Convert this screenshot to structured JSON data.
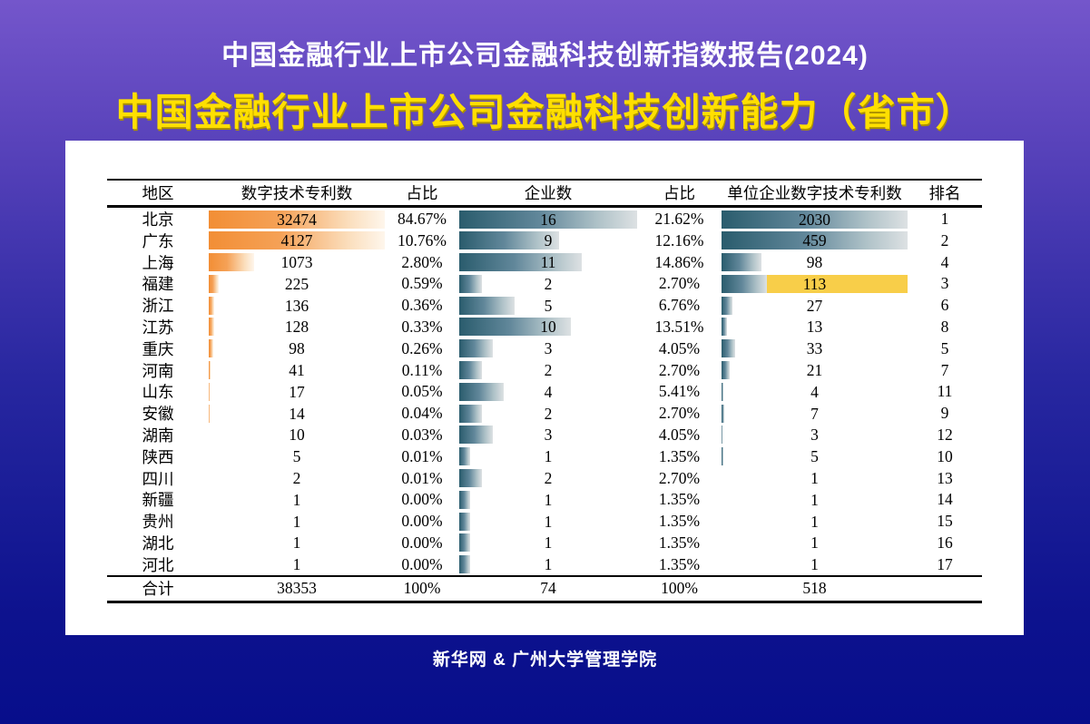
{
  "header": {
    "report_title": "中国金融行业上市公司金融科技创新指数报告(2024)",
    "main_title": "中国金融行业上市公司金融科技创新能力（省市）"
  },
  "footer": {
    "credit": "新华网 & 广州大学管理学院"
  },
  "colors": {
    "background_top": "#7456CB",
    "background_bottom": "#070E8B",
    "title_yellow": "#FFDF00",
    "patent_bar_orange": "#F28E35",
    "count_bar_teal": "#2A5C6D",
    "highlight_yellow": "#F8CE49",
    "card_white": "#FFFFFF"
  },
  "chart_data": {
    "type": "table",
    "title": "中国金融行业上市公司金融科技创新能力（省市）",
    "columns": [
      "地区",
      "数字技术专利数",
      "占比",
      "企业数",
      "占比",
      "单位企业数字技术专利数",
      "排名"
    ],
    "bar_scales": {
      "patents_max": 4127,
      "enterprises_max": 16,
      "per_enterprise_max": 459
    },
    "rows": [
      {
        "region": "北京",
        "patents": 32474,
        "patents_pct": "84.67%",
        "enterprises": 16,
        "enterprises_pct": "21.62%",
        "per_enterprise": 2030,
        "rank": 1,
        "highlight": false
      },
      {
        "region": "广东",
        "patents": 4127,
        "patents_pct": "10.76%",
        "enterprises": 9,
        "enterprises_pct": "12.16%",
        "per_enterprise": 459,
        "rank": 2,
        "highlight": false
      },
      {
        "region": "上海",
        "patents": 1073,
        "patents_pct": "2.80%",
        "enterprises": 11,
        "enterprises_pct": "14.86%",
        "per_enterprise": 98,
        "rank": 4,
        "highlight": false
      },
      {
        "region": "福建",
        "patents": 225,
        "patents_pct": "0.59%",
        "enterprises": 2,
        "enterprises_pct": "2.70%",
        "per_enterprise": 113,
        "rank": 3,
        "highlight": true
      },
      {
        "region": "浙江",
        "patents": 136,
        "patents_pct": "0.36%",
        "enterprises": 5,
        "enterprises_pct": "6.76%",
        "per_enterprise": 27,
        "rank": 6,
        "highlight": false
      },
      {
        "region": "江苏",
        "patents": 128,
        "patents_pct": "0.33%",
        "enterprises": 10,
        "enterprises_pct": "13.51%",
        "per_enterprise": 13,
        "rank": 8,
        "highlight": false
      },
      {
        "region": "重庆",
        "patents": 98,
        "patents_pct": "0.26%",
        "enterprises": 3,
        "enterprises_pct": "4.05%",
        "per_enterprise": 33,
        "rank": 5,
        "highlight": false
      },
      {
        "region": "河南",
        "patents": 41,
        "patents_pct": "0.11%",
        "enterprises": 2,
        "enterprises_pct": "2.70%",
        "per_enterprise": 21,
        "rank": 7,
        "highlight": false
      },
      {
        "region": "山东",
        "patents": 17,
        "patents_pct": "0.05%",
        "enterprises": 4,
        "enterprises_pct": "5.41%",
        "per_enterprise": 4,
        "rank": 11,
        "highlight": false
      },
      {
        "region": "安徽",
        "patents": 14,
        "patents_pct": "0.04%",
        "enterprises": 2,
        "enterprises_pct": "2.70%",
        "per_enterprise": 7,
        "rank": 9,
        "highlight": false
      },
      {
        "region": "湖南",
        "patents": 10,
        "patents_pct": "0.03%",
        "enterprises": 3,
        "enterprises_pct": "4.05%",
        "per_enterprise": 3,
        "rank": 12,
        "highlight": false
      },
      {
        "region": "陕西",
        "patents": 5,
        "patents_pct": "0.01%",
        "enterprises": 1,
        "enterprises_pct": "1.35%",
        "per_enterprise": 5,
        "rank": 10,
        "highlight": false
      },
      {
        "region": "四川",
        "patents": 2,
        "patents_pct": "0.01%",
        "enterprises": 2,
        "enterprises_pct": "2.70%",
        "per_enterprise": 1,
        "rank": 13,
        "highlight": false
      },
      {
        "region": "新疆",
        "patents": 1,
        "patents_pct": "0.00%",
        "enterprises": 1,
        "enterprises_pct": "1.35%",
        "per_enterprise": 1,
        "rank": 14,
        "highlight": false
      },
      {
        "region": "贵州",
        "patents": 1,
        "patents_pct": "0.00%",
        "enterprises": 1,
        "enterprises_pct": "1.35%",
        "per_enterprise": 1,
        "rank": 15,
        "highlight": false
      },
      {
        "region": "湖北",
        "patents": 1,
        "patents_pct": "0.00%",
        "enterprises": 1,
        "enterprises_pct": "1.35%",
        "per_enterprise": 1,
        "rank": 16,
        "highlight": false
      },
      {
        "region": "河北",
        "patents": 1,
        "patents_pct": "0.00%",
        "enterprises": 1,
        "enterprises_pct": "1.35%",
        "per_enterprise": 1,
        "rank": 17,
        "highlight": false
      }
    ],
    "total": {
      "region": "合计",
      "patents": "38353",
      "patents_pct": "100%",
      "enterprises": "74",
      "enterprises_pct": "100%",
      "per_enterprise": "518",
      "rank": ""
    }
  }
}
